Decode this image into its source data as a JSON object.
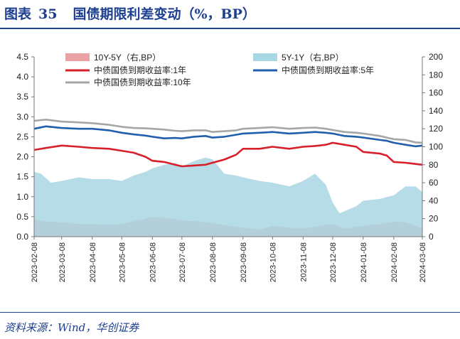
{
  "figure": {
    "label": "图表",
    "number": "35",
    "title": "国债期限利差变动（%，BP）",
    "source": "资料来源：Wind，华创证券"
  },
  "chart_data": {
    "type": "line",
    "x_tick_labels": [
      "2023-02-08",
      "2023-03-08",
      "2023-04-08",
      "2023-05-08",
      "2023-06-08",
      "2023-07-08",
      "2023-08-08",
      "2023-09-08",
      "2023-10-08",
      "2023-11-08",
      "2023-12-08",
      "2024-01-08",
      "2024-02-08",
      "2024-03-08"
    ],
    "x_range": [
      "2023-02-08",
      "2024-03-08"
    ],
    "ylim_left": [
      0,
      4.5
    ],
    "yticks_left": [
      "0.0",
      "0.5",
      "1.0",
      "1.5",
      "2.0",
      "2.5",
      "3.0",
      "3.5",
      "4.0",
      "4.5"
    ],
    "ylim_right": [
      0,
      200
    ],
    "yticks_right": [
      "0",
      "20",
      "40",
      "60",
      "80",
      "100",
      "120",
      "140",
      "160",
      "180",
      "200"
    ],
    "grid": false,
    "legend_position": "top",
    "series": [
      {
        "name": "10Y-5Y（右,BP）",
        "type": "area",
        "axis": "right",
        "color": "#eaa2a4",
        "x": [
          "2023-02-08",
          "2023-02-20",
          "2023-03-08",
          "2023-03-25",
          "2023-04-08",
          "2023-04-25",
          "2023-05-08",
          "2023-05-20",
          "2023-06-01",
          "2023-06-08",
          "2023-06-20",
          "2023-07-08",
          "2023-07-25",
          "2023-08-08",
          "2023-08-25",
          "2023-09-08",
          "2023-09-25",
          "2023-10-08",
          "2023-10-25",
          "2023-11-08",
          "2023-11-25",
          "2023-12-08",
          "2023-12-20",
          "2024-01-08",
          "2024-01-25",
          "2024-02-08",
          "2024-02-20",
          "2024-03-08"
        ],
        "values": [
          19,
          17,
          16,
          14,
          14,
          13,
          14,
          17,
          20,
          22,
          21,
          18,
          17,
          15,
          12,
          10,
          8,
          12,
          10,
          9,
          12,
          14,
          9,
          12,
          14,
          17,
          16,
          9
        ]
      },
      {
        "name": "5Y-1Y（右,BP）",
        "type": "area",
        "axis": "right",
        "color": "#a9d7e3",
        "x": [
          "2023-02-08",
          "2023-02-15",
          "2023-02-25",
          "2023-03-08",
          "2023-03-25",
          "2023-04-08",
          "2023-04-25",
          "2023-05-08",
          "2023-05-20",
          "2023-06-01",
          "2023-06-08",
          "2023-06-20",
          "2023-07-01",
          "2023-07-08",
          "2023-07-20",
          "2023-08-01",
          "2023-08-08",
          "2023-08-20",
          "2023-09-01",
          "2023-09-08",
          "2023-09-25",
          "2023-10-08",
          "2023-10-25",
          "2023-11-08",
          "2023-11-20",
          "2023-12-01",
          "2023-12-08",
          "2023-12-15",
          "2024-01-01",
          "2024-01-08",
          "2024-01-25",
          "2024-02-01",
          "2024-02-08",
          "2024-02-20",
          "2024-03-01",
          "2024-03-08"
        ],
        "values": [
          72,
          70,
          60,
          62,
          66,
          64,
          64,
          62,
          68,
          72,
          76,
          80,
          82,
          78,
          84,
          88,
          86,
          70,
          68,
          66,
          62,
          60,
          56,
          62,
          70,
          58,
          38,
          26,
          34,
          40,
          42,
          44,
          46,
          56,
          56,
          50
        ]
      },
      {
        "name": "中债国债到期收益率:1年",
        "type": "line",
        "axis": "left",
        "color": "#d9202a",
        "x": [
          "2023-02-08",
          "2023-02-20",
          "2023-03-08",
          "2023-03-25",
          "2023-04-08",
          "2023-04-25",
          "2023-05-08",
          "2023-05-20",
          "2023-06-01",
          "2023-06-08",
          "2023-06-20",
          "2023-07-01",
          "2023-07-08",
          "2023-07-20",
          "2023-08-01",
          "2023-08-08",
          "2023-08-20",
          "2023-09-01",
          "2023-09-08",
          "2023-09-25",
          "2023-10-08",
          "2023-10-25",
          "2023-11-08",
          "2023-11-20",
          "2023-12-01",
          "2023-12-08",
          "2023-12-20",
          "2024-01-01",
          "2024-01-08",
          "2024-01-25",
          "2024-02-01",
          "2024-02-08",
          "2024-02-20",
          "2024-03-01",
          "2024-03-08"
        ],
        "values": [
          2.17,
          2.22,
          2.28,
          2.25,
          2.22,
          2.2,
          2.15,
          2.1,
          2.0,
          1.9,
          1.87,
          1.8,
          1.76,
          1.78,
          1.8,
          1.85,
          1.93,
          2.05,
          2.2,
          2.2,
          2.25,
          2.2,
          2.25,
          2.27,
          2.3,
          2.35,
          2.3,
          2.25,
          2.12,
          2.08,
          2.03,
          1.87,
          1.85,
          1.82,
          1.8
        ]
      },
      {
        "name": "中债国债到期收益率:5年",
        "type": "line",
        "axis": "left",
        "color": "#1f5fad",
        "x": [
          "2023-02-08",
          "2023-02-20",
          "2023-03-08",
          "2023-03-25",
          "2023-04-08",
          "2023-04-25",
          "2023-05-08",
          "2023-05-20",
          "2023-06-01",
          "2023-06-08",
          "2023-06-20",
          "2023-07-01",
          "2023-07-08",
          "2023-07-20",
          "2023-08-01",
          "2023-08-08",
          "2023-08-20",
          "2023-09-01",
          "2023-09-08",
          "2023-09-25",
          "2023-10-08",
          "2023-10-25",
          "2023-11-08",
          "2023-11-20",
          "2023-12-01",
          "2023-12-08",
          "2023-12-20",
          "2024-01-01",
          "2024-01-08",
          "2024-01-25",
          "2024-02-01",
          "2024-02-08",
          "2024-02-20",
          "2024-03-01",
          "2024-03-08"
        ],
        "values": [
          2.7,
          2.76,
          2.72,
          2.7,
          2.7,
          2.66,
          2.6,
          2.56,
          2.53,
          2.5,
          2.46,
          2.47,
          2.46,
          2.5,
          2.52,
          2.48,
          2.5,
          2.55,
          2.58,
          2.6,
          2.62,
          2.58,
          2.6,
          2.62,
          2.6,
          2.58,
          2.52,
          2.5,
          2.48,
          2.42,
          2.4,
          2.35,
          2.3,
          2.26,
          2.28
        ]
      },
      {
        "name": "中债国债到期收益率:10年",
        "type": "line",
        "axis": "left",
        "color": "#a6a6a6",
        "x": [
          "2023-02-08",
          "2023-02-20",
          "2023-03-08",
          "2023-03-25",
          "2023-04-08",
          "2023-04-25",
          "2023-05-08",
          "2023-05-20",
          "2023-06-01",
          "2023-06-08",
          "2023-06-20",
          "2023-07-01",
          "2023-07-08",
          "2023-07-20",
          "2023-08-01",
          "2023-08-08",
          "2023-08-20",
          "2023-09-01",
          "2023-09-08",
          "2023-09-25",
          "2023-10-08",
          "2023-10-25",
          "2023-11-08",
          "2023-11-20",
          "2023-12-01",
          "2023-12-08",
          "2023-12-20",
          "2024-01-01",
          "2024-01-08",
          "2024-01-25",
          "2024-02-01",
          "2024-02-08",
          "2024-02-20",
          "2024-03-01",
          "2024-03-08"
        ],
        "values": [
          2.9,
          2.93,
          2.88,
          2.86,
          2.84,
          2.8,
          2.75,
          2.72,
          2.71,
          2.7,
          2.68,
          2.65,
          2.64,
          2.66,
          2.66,
          2.62,
          2.64,
          2.66,
          2.7,
          2.72,
          2.74,
          2.7,
          2.72,
          2.73,
          2.7,
          2.67,
          2.62,
          2.6,
          2.58,
          2.52,
          2.48,
          2.44,
          2.42,
          2.36,
          2.35
        ]
      }
    ]
  }
}
